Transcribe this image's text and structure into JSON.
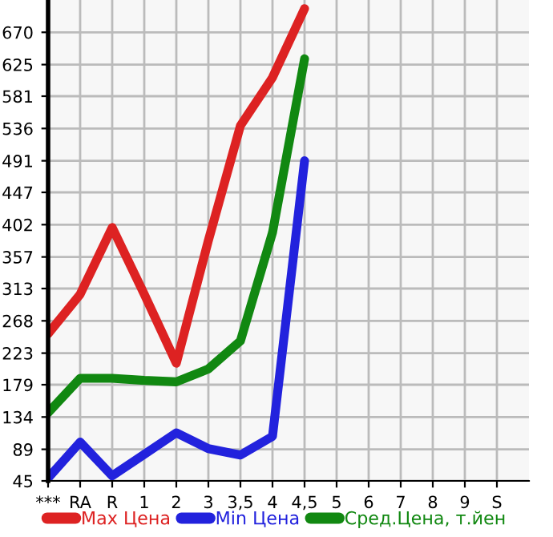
{
  "chart_data": {
    "type": "line",
    "categories": [
      "***",
      "RA",
      "R",
      "1",
      "2",
      "3",
      "3,5",
      "4",
      "4,5",
      "5",
      "6",
      "7",
      "8",
      "9",
      "S"
    ],
    "series": [
      {
        "name": "Max Цена",
        "color": "#dd2222",
        "values": [
          250,
          305,
          398,
          305,
          209,
          380,
          540,
          607,
          703,
          null,
          null,
          null,
          null,
          null,
          null
        ]
      },
      {
        "name": "Min Цена",
        "color": "#2222dd",
        "values": [
          49,
          99,
          52,
          82,
          112,
          90,
          81,
          107,
          491,
          null,
          null,
          null,
          null,
          null,
          null
        ]
      },
      {
        "name": "Сред.Цена, т.йен",
        "color": "#118811",
        "values": [
          140,
          188,
          188,
          185,
          183,
          201,
          240,
          391,
          633,
          null,
          null,
          null,
          null,
          null,
          null
        ]
      }
    ],
    "ylim": [
      45,
      715
    ],
    "yticks": [
      45,
      89,
      134,
      179,
      223,
      268,
      313,
      357,
      402,
      447,
      491,
      536,
      581,
      625,
      670
    ],
    "grid": true,
    "legend": "bottom",
    "marker": "none",
    "line_style": "solid"
  }
}
